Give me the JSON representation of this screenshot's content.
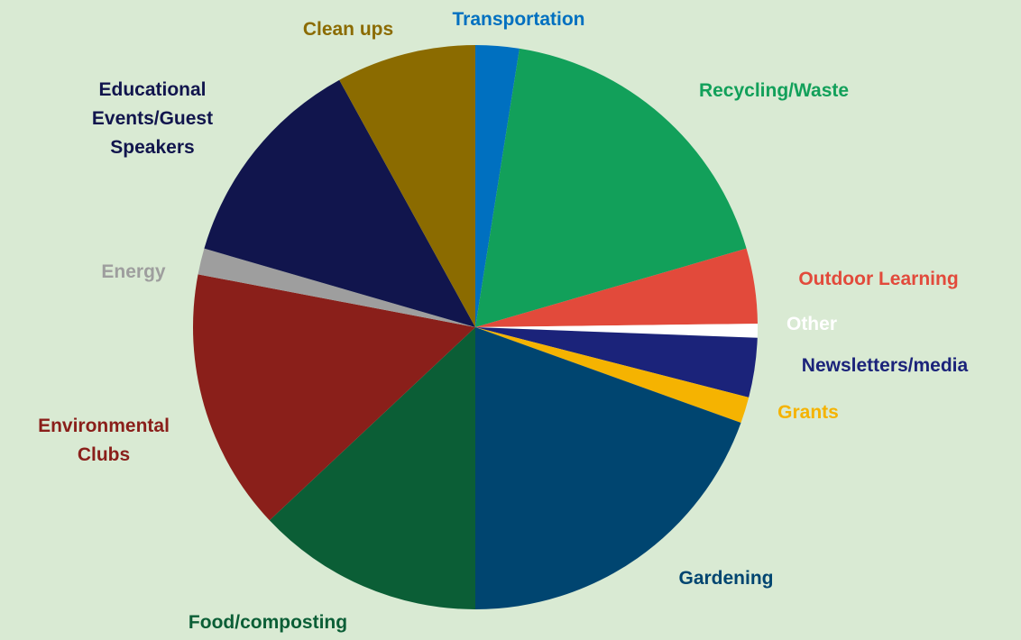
{
  "chart_data": {
    "type": "pie",
    "title": "",
    "start_angle_deg": 0,
    "direction": "clockwise",
    "background": "#d9ead3",
    "slices": [
      {
        "label": "Transportation",
        "value": 2.5,
        "color": "#0070c0",
        "label_color": "#0070c0"
      },
      {
        "label": "Recycling/Waste",
        "value": 18.0,
        "color": "#12a05a",
        "label_color": "#12a05a"
      },
      {
        "label": "Outdoor Learning",
        "value": 4.3,
        "color": "#e24a3b",
        "label_color": "#e24a3b"
      },
      {
        "label": "Other",
        "value": 0.8,
        "color": "#ffffff",
        "label_color": "#ffffff"
      },
      {
        "label": "Newsletters/media",
        "value": 3.4,
        "color": "#1b237a",
        "label_color": "#1b237a"
      },
      {
        "label": "Grants",
        "value": 1.5,
        "color": "#f5b301",
        "label_color": "#f5b301"
      },
      {
        "label": "Gardening",
        "value": 19.5,
        "color": "#004570",
        "label_color": "#004570"
      },
      {
        "label": "Food/composting",
        "value": 13.0,
        "color": "#0b5e36",
        "label_color": "#0b5e36"
      },
      {
        "label": "Environmental\nClubs",
        "value": 15.0,
        "color": "#8a1f1a",
        "label_color": "#8a1f1a"
      },
      {
        "label": "Energy",
        "value": 1.5,
        "color": "#9e9e9e",
        "label_color": "#9e9e9e"
      },
      {
        "label": "Educational\nEvents/Guest\nSpeakers",
        "value": 12.5,
        "color": "#11154d",
        "label_color": "#11154d"
      },
      {
        "label": "Clean ups",
        "value": 8.0,
        "color": "#8b6b00",
        "label_color": "#8b6b00"
      }
    ]
  }
}
